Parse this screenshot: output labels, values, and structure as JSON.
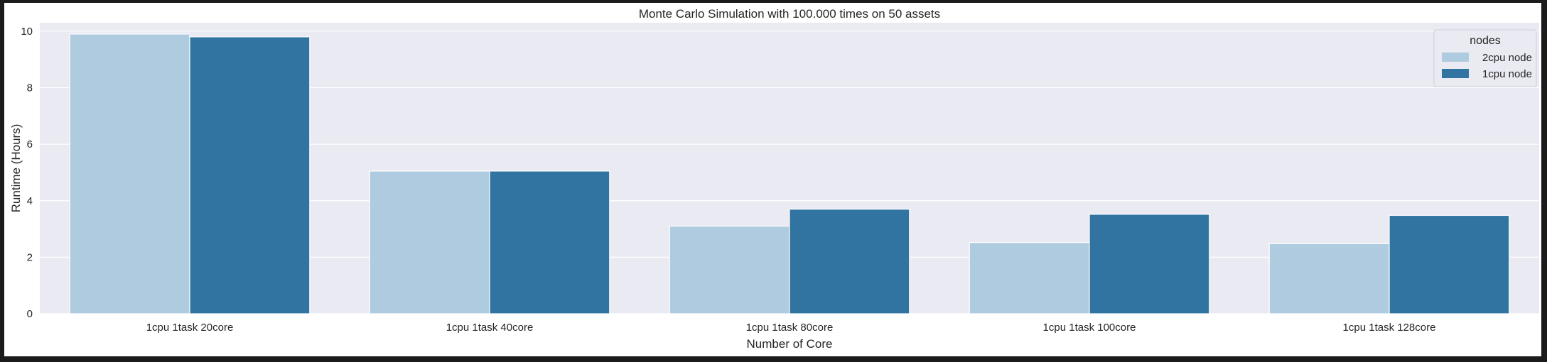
{
  "chart_data": {
    "type": "bar",
    "title": "Monte Carlo Simulation with 100.000 times on 50 assets",
    "xlabel": "Number of Core",
    "ylabel": "Runtime (Hours)",
    "categories": [
      "1cpu 1task 20core",
      "1cpu 1task 40core",
      "1cpu 1task 80core",
      "1cpu 1task 100core",
      "1cpu 1task 128core"
    ],
    "series": [
      {
        "name": "2cpu node",
        "color": "#aecbdf",
        "values": [
          9.9,
          5.05,
          3.1,
          2.52,
          2.48
        ]
      },
      {
        "name": "1cpu node",
        "color": "#3174a1",
        "values": [
          9.8,
          5.05,
          3.7,
          3.52,
          3.48
        ]
      }
    ],
    "ylim": [
      0,
      10.3
    ],
    "yticks": [
      0,
      2,
      4,
      6,
      8,
      10
    ],
    "grid": true,
    "legend": {
      "title": "nodes",
      "placement": "top-right"
    },
    "colors": {
      "plot_background": "#eaeaf2",
      "grid": "#ffffff",
      "frame": "#1b1b1b"
    }
  }
}
